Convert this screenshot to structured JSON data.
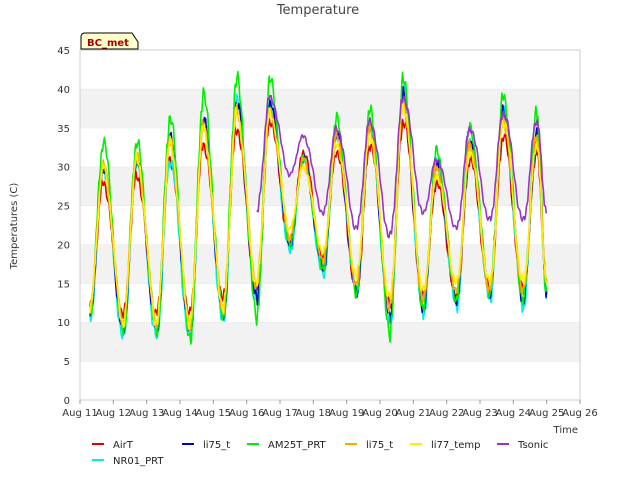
{
  "chart_data": {
    "type": "line",
    "title": "Temperature",
    "xlabel": "Time",
    "ylabel": "Temperatures (C)",
    "badge": "BC_met",
    "ylim": [
      0,
      45
    ],
    "yticks": [
      0,
      5,
      10,
      15,
      20,
      25,
      30,
      35,
      40,
      45
    ],
    "xlim": [
      11,
      26
    ],
    "xticks": [
      {
        "v": 11,
        "label": "Aug 11"
      },
      {
        "v": 12,
        "label": "Aug 12"
      },
      {
        "v": 13,
        "label": "Aug 13"
      },
      {
        "v": 14,
        "label": "Aug 14"
      },
      {
        "v": 15,
        "label": "Aug 15"
      },
      {
        "v": 16,
        "label": "Aug 16"
      },
      {
        "v": 17,
        "label": "Aug 17"
      },
      {
        "v": 18,
        "label": "Aug 18"
      },
      {
        "v": 19,
        "label": "Aug 19"
      },
      {
        "v": 20,
        "label": "Aug 20"
      },
      {
        "v": 21,
        "label": "Aug 21"
      },
      {
        "v": 22,
        "label": "Aug 22"
      },
      {
        "v": 23,
        "label": "Aug 23"
      },
      {
        "v": 24,
        "label": "Aug 24"
      },
      {
        "v": 25,
        "label": "Aug 25"
      },
      {
        "v": 26,
        "label": "Aug 26"
      }
    ],
    "grid": "horizontal alternating bands",
    "legend_position": "bottom",
    "x_days": [
      11.3,
      11.7,
      12.3,
      12.7,
      13.3,
      13.7,
      14.3,
      14.7,
      15.3,
      15.7,
      16.3,
      16.7,
      17.3,
      17.7,
      18.3,
      18.7,
      19.3,
      19.7,
      20.3,
      20.7,
      21.3,
      21.7,
      22.3,
      22.7,
      23.3,
      23.7,
      24.3,
      24.7,
      25.0
    ],
    "series": [
      {
        "name": "AirT",
        "color": "#dd0000",
        "x_start": 11.3,
        "x_end": 25.0,
        "values": [
          12,
          28,
          11,
          29,
          11,
          31,
          11,
          33,
          13,
          35,
          14,
          36,
          20,
          32,
          18,
          32,
          14,
          33,
          12,
          36,
          13,
          28,
          13,
          31,
          14,
          34,
          14,
          32,
          15
        ]
      },
      {
        "name": "NR01_PRT",
        "color": "#00eeee",
        "x_start": 11.3,
        "x_end": 25.0,
        "values": [
          10,
          30,
          8,
          31,
          8,
          31,
          8,
          36,
          10,
          39,
          13,
          38,
          19,
          31,
          16,
          34,
          14,
          35,
          10,
          40,
          11,
          31,
          12,
          33,
          13,
          37,
          12,
          34,
          13
        ]
      },
      {
        "name": "li75_t",
        "color": "#0000cc",
        "x_start": 11.3,
        "x_end": 25.0,
        "values": [
          11,
          30,
          9,
          31,
          9,
          34,
          9,
          36,
          11,
          38,
          13,
          38,
          20,
          31,
          17,
          34,
          14,
          35,
          11,
          39,
          12,
          30,
          13,
          33,
          14,
          37,
          13,
          34,
          14
        ]
      },
      {
        "name": "AM25T_PRT",
        "color": "#00ee00",
        "x_start": 11.3,
        "x_end": 25.0,
        "values": [
          11,
          33,
          9,
          33,
          9,
          36,
          8,
          39,
          11,
          41,
          11,
          41,
          20,
          31,
          17,
          36,
          14,
          37,
          9,
          41,
          12,
          32,
          13,
          35,
          14,
          39,
          13,
          37,
          14
        ]
      },
      {
        "name": "li75_t",
        "color": "#ffa500",
        "x_start": 11.3,
        "x_end": 25.0,
        "values": [
          12,
          30,
          10,
          31,
          10,
          33,
          10,
          35,
          12,
          37,
          15,
          37,
          21,
          31,
          18,
          34,
          15,
          35,
          12,
          38,
          13,
          30,
          14,
          33,
          14,
          36,
          14,
          34,
          15
        ]
      },
      {
        "name": "li77_temp",
        "color": "#ffee00",
        "x_start": 11.3,
        "x_end": 25.0,
        "values": [
          12,
          30,
          10,
          31,
          10,
          33,
          10,
          35,
          12,
          37,
          15,
          37,
          22,
          30,
          19,
          33,
          16,
          34,
          13,
          38,
          14,
          29,
          15,
          32,
          15,
          36,
          15,
          33,
          15
        ]
      },
      {
        "name": "Tsonic",
        "color": "#9933cc",
        "x_start": 16.3,
        "x_end": 25.0,
        "values": [
          24,
          39,
          29,
          34,
          24,
          35,
          22,
          36,
          21,
          39,
          24,
          31,
          22,
          35,
          23,
          37,
          23,
          36,
          24
        ]
      }
    ]
  }
}
